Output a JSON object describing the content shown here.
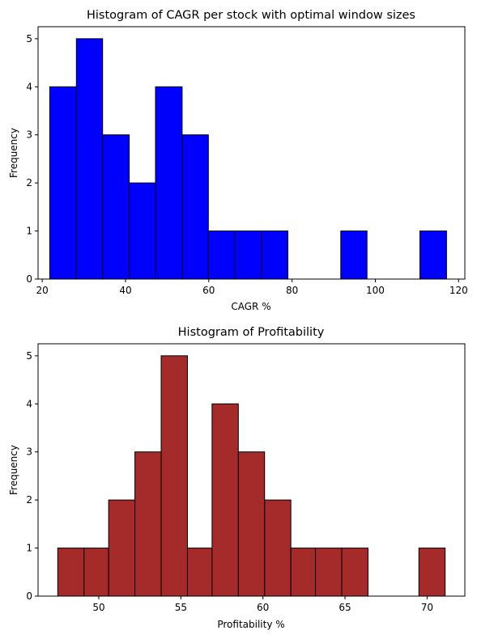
{
  "chart_data": [
    {
      "type": "bar",
      "title": "Histogram of CAGR per stock with optimal window sizes",
      "xlabel": "CAGR %",
      "ylabel": "Frequency",
      "bar_color": "#0000ff",
      "edge_color": "#000000",
      "xlim": [
        19,
        121.5
      ],
      "ylim": [
        0,
        5.25
      ],
      "xticks": [
        20,
        40,
        60,
        80,
        100,
        120
      ],
      "yticks": [
        0,
        1,
        2,
        3,
        4,
        5
      ],
      "bins": [
        {
          "start": 21.8,
          "end": 28.2,
          "count": 4
        },
        {
          "start": 28.2,
          "end": 34.5,
          "count": 5
        },
        {
          "start": 34.5,
          "end": 40.9,
          "count": 3
        },
        {
          "start": 40.9,
          "end": 47.2,
          "count": 2
        },
        {
          "start": 47.2,
          "end": 53.6,
          "count": 4
        },
        {
          "start": 53.6,
          "end": 59.9,
          "count": 3
        },
        {
          "start": 59.9,
          "end": 66.3,
          "count": 1
        },
        {
          "start": 66.3,
          "end": 72.6,
          "count": 1
        },
        {
          "start": 72.6,
          "end": 79.0,
          "count": 1
        },
        {
          "start": 79.0,
          "end": 85.3,
          "count": 0
        },
        {
          "start": 85.3,
          "end": 91.7,
          "count": 0
        },
        {
          "start": 91.7,
          "end": 98.0,
          "count": 1
        },
        {
          "start": 98.0,
          "end": 104.4,
          "count": 0
        },
        {
          "start": 104.4,
          "end": 110.7,
          "count": 0
        },
        {
          "start": 110.7,
          "end": 117.1,
          "count": 1
        }
      ]
    },
    {
      "type": "bar",
      "title": "Histogram of Profitability",
      "xlabel": "Profitability %",
      "ylabel": "Frequency",
      "bar_color": "#a52a2a",
      "edge_color": "#000000",
      "xlim": [
        46.3,
        72.3
      ],
      "ylim": [
        0,
        5.25
      ],
      "xticks": [
        50,
        55,
        60,
        65,
        70
      ],
      "yticks": [
        0,
        1,
        2,
        3,
        4,
        5
      ],
      "bins": [
        {
          "start": 47.5,
          "end": 49.1,
          "count": 1
        },
        {
          "start": 49.1,
          "end": 50.6,
          "count": 1
        },
        {
          "start": 50.6,
          "end": 52.2,
          "count": 2
        },
        {
          "start": 52.2,
          "end": 53.8,
          "count": 3
        },
        {
          "start": 53.8,
          "end": 55.4,
          "count": 5
        },
        {
          "start": 55.4,
          "end": 56.9,
          "count": 1
        },
        {
          "start": 56.9,
          "end": 58.5,
          "count": 4
        },
        {
          "start": 58.5,
          "end": 60.1,
          "count": 3
        },
        {
          "start": 60.1,
          "end": 61.7,
          "count": 2
        },
        {
          "start": 61.7,
          "end": 63.2,
          "count": 1
        },
        {
          "start": 63.2,
          "end": 64.8,
          "count": 1
        },
        {
          "start": 64.8,
          "end": 66.4,
          "count": 1
        },
        {
          "start": 66.4,
          "end": 68.0,
          "count": 0
        },
        {
          "start": 68.0,
          "end": 69.5,
          "count": 0
        },
        {
          "start": 69.5,
          "end": 71.1,
          "count": 1
        }
      ]
    }
  ]
}
